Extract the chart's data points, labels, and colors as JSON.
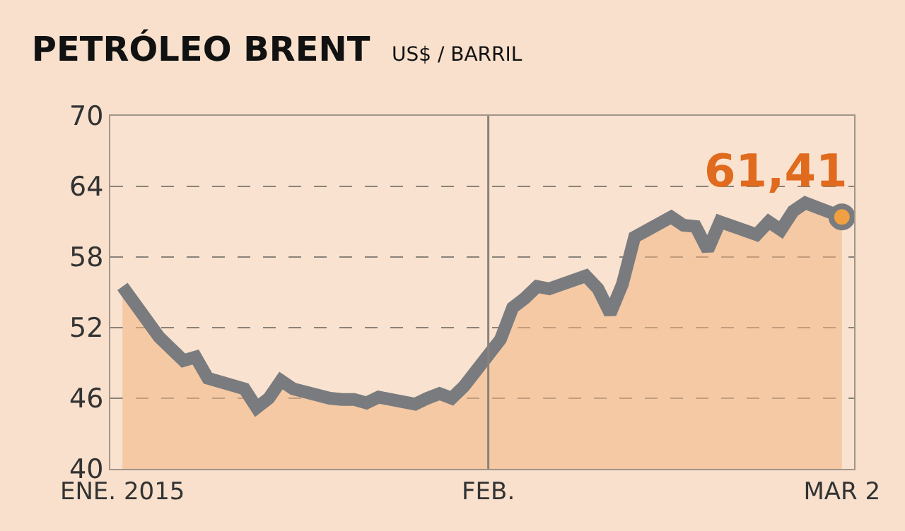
{
  "chart_data": {
    "type": "area",
    "title": "PETRÓLEO BRENT",
    "subtitle": "US$ / BARRIL",
    "x": [
      "2015-01-02",
      "2015-01-05",
      "2015-01-06",
      "2015-01-07",
      "2015-01-08",
      "2015-01-09",
      "2015-01-12",
      "2015-01-13",
      "2015-01-14",
      "2015-01-15",
      "2015-01-16",
      "2015-01-19",
      "2015-01-20",
      "2015-01-21",
      "2015-01-22",
      "2015-01-23",
      "2015-01-26",
      "2015-01-27",
      "2015-01-28",
      "2015-01-29",
      "2015-01-30",
      "2015-02-02",
      "2015-02-03",
      "2015-02-04",
      "2015-02-05",
      "2015-02-06",
      "2015-02-09",
      "2015-02-10",
      "2015-02-11",
      "2015-02-12",
      "2015-02-13",
      "2015-02-16",
      "2015-02-17",
      "2015-02-18",
      "2015-02-19",
      "2015-02-20",
      "2015-02-23",
      "2015-02-24",
      "2015-02-25",
      "2015-02-26",
      "2015-02-27",
      "2015-03-02"
    ],
    "series": [
      {
        "color": "#797b7e",
        "values": [
          55.5,
          51.2,
          50.2,
          49.2,
          49.5,
          47.7,
          46.8,
          45.2,
          46.0,
          47.5,
          46.8,
          46.0,
          45.9,
          45.9,
          45.6,
          46.1,
          45.5,
          46.0,
          46.4,
          46.0,
          47.0,
          51.0,
          53.7,
          54.5,
          55.5,
          55.3,
          56.4,
          55.3,
          53.2,
          55.7,
          59.7,
          61.4,
          60.7,
          60.6,
          58.6,
          61.0,
          59.9,
          61.0,
          60.3,
          61.9,
          62.6,
          61.41
        ]
      }
    ],
    "xlim": [
      "2015-01-01",
      "2015-03-03"
    ],
    "xticks": [
      {
        "value": "2015-01-02",
        "label": "ENE. 2015"
      },
      {
        "value": "2015-02-01",
        "label": "FEB."
      },
      {
        "value": "2015-03-02",
        "label": "MAR 2"
      }
    ],
    "ylim": [
      40,
      70
    ],
    "yticks": [
      40,
      46,
      52,
      58,
      64,
      70
    ],
    "grid": "y",
    "marker": "none",
    "line_style": "solid",
    "ref_lines": [
      {
        "axis": "x",
        "value": "2015-02-01",
        "color": "#8a8279"
      }
    ],
    "annotations": [
      {
        "text": "61,41",
        "x": "2015-03-02",
        "y": 61.41
      }
    ]
  }
}
